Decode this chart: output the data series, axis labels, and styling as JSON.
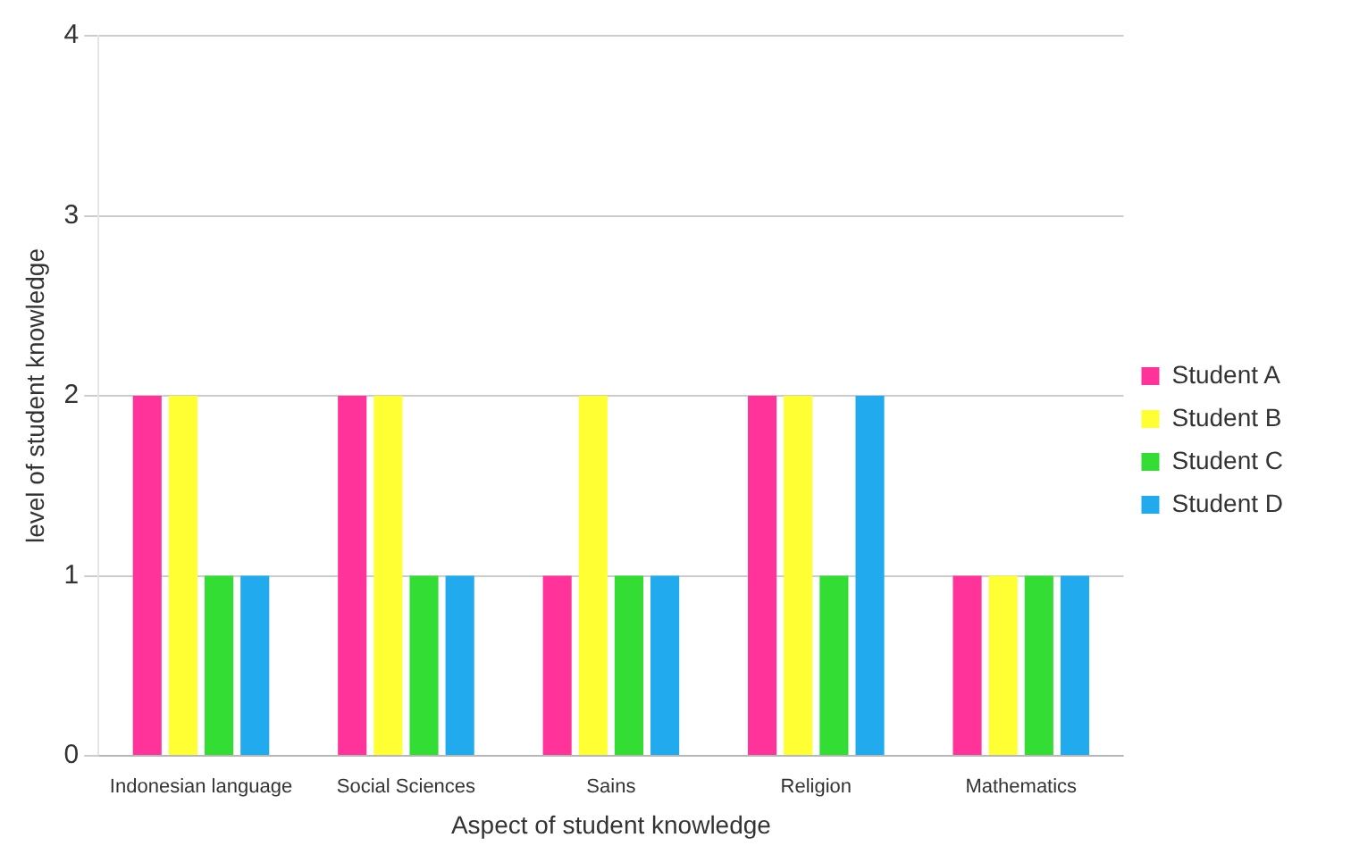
{
  "chart_data": {
    "type": "bar",
    "xlabel": "Aspect of student knowledge",
    "ylabel": "level of student knowledge",
    "categories": [
      "Indonesian language",
      "Social Sciences",
      "Sains",
      "Religion",
      "Mathematics"
    ],
    "series": [
      {
        "name": "Student A",
        "color": "#ff3399",
        "values": [
          2,
          2,
          1,
          2,
          1
        ]
      },
      {
        "name": "Student B",
        "color": "#ffff33",
        "values": [
          2,
          2,
          2,
          2,
          1
        ]
      },
      {
        "name": "Student C",
        "color": "#33dd33",
        "values": [
          1,
          1,
          1,
          1,
          1
        ]
      },
      {
        "name": "Student D",
        "color": "#22aaee",
        "values": [
          1,
          1,
          1,
          2,
          1
        ]
      }
    ],
    "ylim": [
      0,
      4
    ],
    "yticks": [
      0,
      1,
      2,
      3,
      4
    ],
    "grid": "y",
    "legend": "right"
  }
}
